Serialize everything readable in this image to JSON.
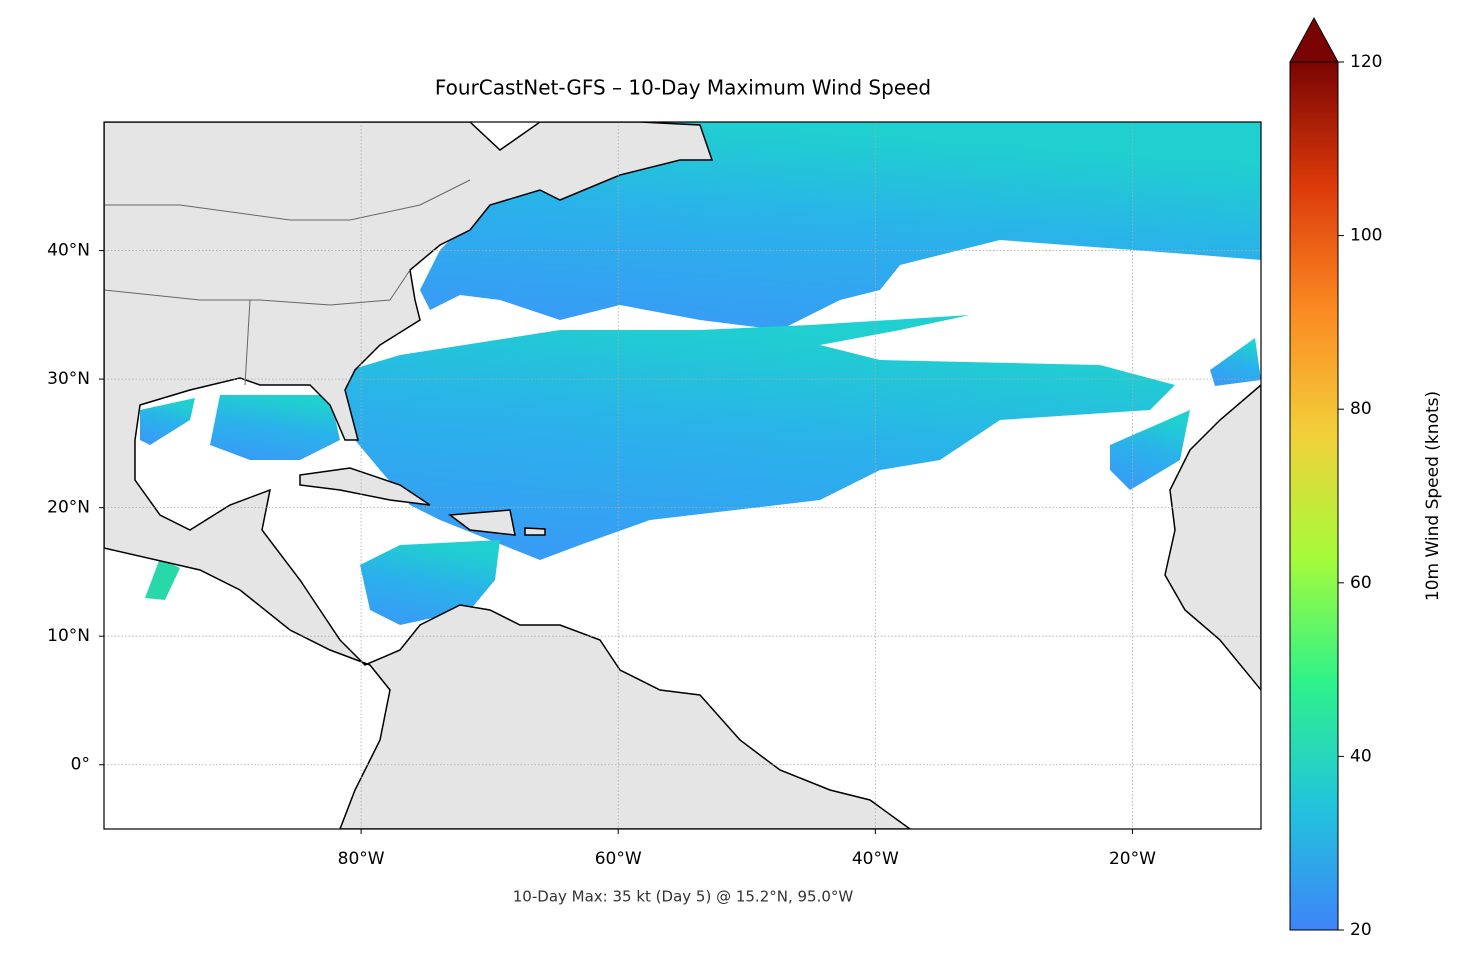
{
  "title": "FourCastNet-GFS – 10-Day Maximum Wind Speed",
  "annotation": "10-Day Max: 35 kt (Day 5) @ 15.2°N, 95.0°W",
  "map": {
    "lonlim": [
      -100,
      -10
    ],
    "latlim": [
      -5,
      50
    ],
    "grid": true,
    "xticks": [
      {
        "value": -80,
        "label": "80°W"
      },
      {
        "value": -60,
        "label": "60°W"
      },
      {
        "value": -40,
        "label": "40°W"
      },
      {
        "value": -20,
        "label": "20°W"
      }
    ],
    "yticks": [
      {
        "value": 0,
        "label": "0°"
      },
      {
        "value": 10,
        "label": "10°N"
      },
      {
        "value": 20,
        "label": "20°N"
      },
      {
        "value": 30,
        "label": "30°N"
      },
      {
        "value": 40,
        "label": "40°N"
      }
    ]
  },
  "colorbar": {
    "label": "10m Wind Speed (knots)",
    "lim": [
      20,
      120
    ],
    "ticks": [
      20,
      40,
      60,
      80,
      100,
      120
    ],
    "extend": "max",
    "colors": [
      "#3e84f7",
      "#22c4dc",
      "#2ef28a",
      "#a5fb3a",
      "#f2d03a",
      "#fb8a22",
      "#dc3a0a",
      "#7a0403"
    ]
  }
}
